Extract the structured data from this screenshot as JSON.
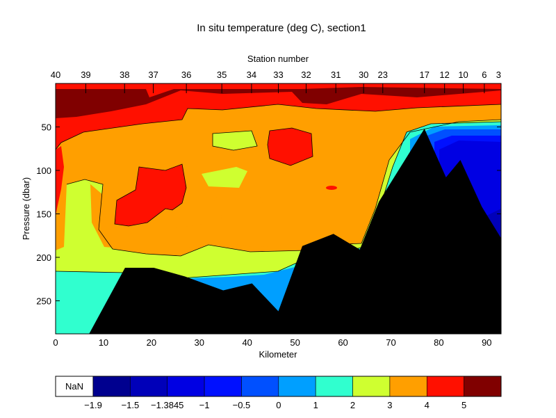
{
  "chart_data": {
    "type": "contour",
    "title": "In situ temperature (deg C), section1",
    "xlabel": "Kilometer",
    "ylabel": "Pressure (dbar)",
    "top_axis_label": "Station number",
    "xlim": [
      0,
      93
    ],
    "ylim": [
      288,
      0
    ],
    "y_reversed": true,
    "x_ticks": [
      "0",
      "10",
      "20",
      "30",
      "40",
      "50",
      "60",
      "70",
      "80",
      "90"
    ],
    "y_ticks": [
      "50",
      "100",
      "150",
      "200",
      "250"
    ],
    "stations": [
      {
        "label": "40",
        "km": 0
      },
      {
        "label": "39",
        "km": 6.3
      },
      {
        "label": "38",
        "km": 14.4
      },
      {
        "label": "37",
        "km": 20.4
      },
      {
        "label": "36",
        "km": 27.3
      },
      {
        "label": "35",
        "km": 34.7
      },
      {
        "label": "34",
        "km": 40.9
      },
      {
        "label": "33",
        "km": 46.5
      },
      {
        "label": "32",
        "km": 52.3
      },
      {
        "label": "31",
        "km": 58.5
      },
      {
        "label": "30",
        "km": 64.3
      },
      {
        "label": "23",
        "km": 68.3
      },
      {
        "label": "17",
        "km": 77.0
      },
      {
        "label": "12",
        "km": 81.2
      },
      {
        "label": "10",
        "km": 85.1
      },
      {
        "label": "6",
        "km": 89.5
      },
      {
        "label": "3",
        "km": 93.0
      }
    ],
    "colorbar": {
      "nan_label": "NaN",
      "tick_labels": [
        "-1.9",
        "-1.5",
        "-1.3845",
        "-1",
        "-0.5",
        "0",
        "1",
        "2",
        "3",
        "4",
        "5"
      ],
      "colors": [
        "#00008f",
        "#0000b9",
        "#0000e3",
        "#0010ff",
        "#0050ff",
        "#009fff",
        "#30ffcf",
        "#cfff30",
        "#ff9f00",
        "#ff1000",
        "#800000"
      ]
    },
    "bottom_depth": [
      {
        "km": 0,
        "p": 288
      },
      {
        "km": 7,
        "p": 288
      },
      {
        "km": 14.5,
        "p": 212
      },
      {
        "km": 20.5,
        "p": 212
      },
      {
        "km": 27,
        "p": 222
      },
      {
        "km": 35,
        "p": 238
      },
      {
        "km": 41,
        "p": 230
      },
      {
        "km": 46.5,
        "p": 262
      },
      {
        "km": 51.5,
        "p": 187
      },
      {
        "km": 58,
        "p": 173
      },
      {
        "km": 63.5,
        "p": 191
      },
      {
        "km": 67.5,
        "p": 136
      },
      {
        "km": 77,
        "p": 52
      },
      {
        "km": 81.5,
        "p": 108
      },
      {
        "km": 84.5,
        "p": 88
      },
      {
        "km": 89,
        "p": 142
      },
      {
        "km": 93,
        "p": 178
      },
      {
        "km": 93,
        "p": 288
      }
    ]
  }
}
